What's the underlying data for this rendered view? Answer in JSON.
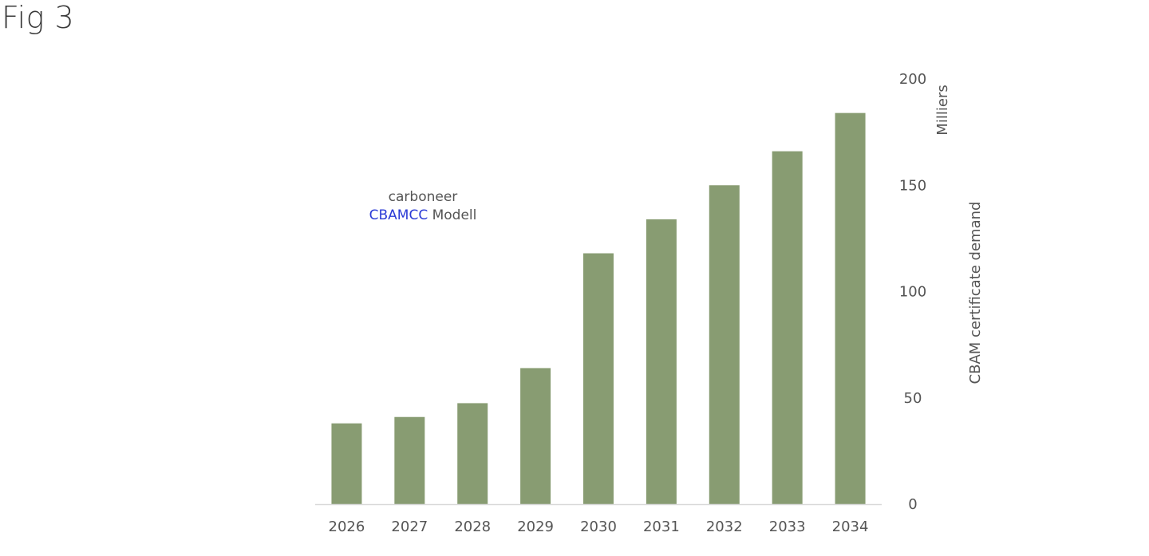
{
  "figure": {
    "label": "Fig 3"
  },
  "annotation": {
    "line1": "carboneer",
    "line2_highlight": "CBAMCC",
    "line2_rest": " Modell"
  },
  "colors": {
    "bar": "#889c72",
    "highlight": "#2b3bd6",
    "axis": "#d9d9d9",
    "text": "#555555"
  },
  "chart_data": {
    "type": "bar",
    "categories": [
      "2026",
      "2027",
      "2028",
      "2029",
      "2030",
      "2031",
      "2032",
      "2033",
      "2034"
    ],
    "values": [
      38,
      41,
      47.5,
      64,
      118,
      134,
      150,
      166,
      184
    ],
    "title": "",
    "xlabel": "",
    "ylabel": "CBAM certificate demand",
    "y_unit_label": "Milliers",
    "ylim": [
      0,
      200
    ],
    "yticks": [
      0,
      50,
      100,
      150,
      200
    ],
    "y_axis_position": "right",
    "grid": false,
    "legend": "none"
  }
}
